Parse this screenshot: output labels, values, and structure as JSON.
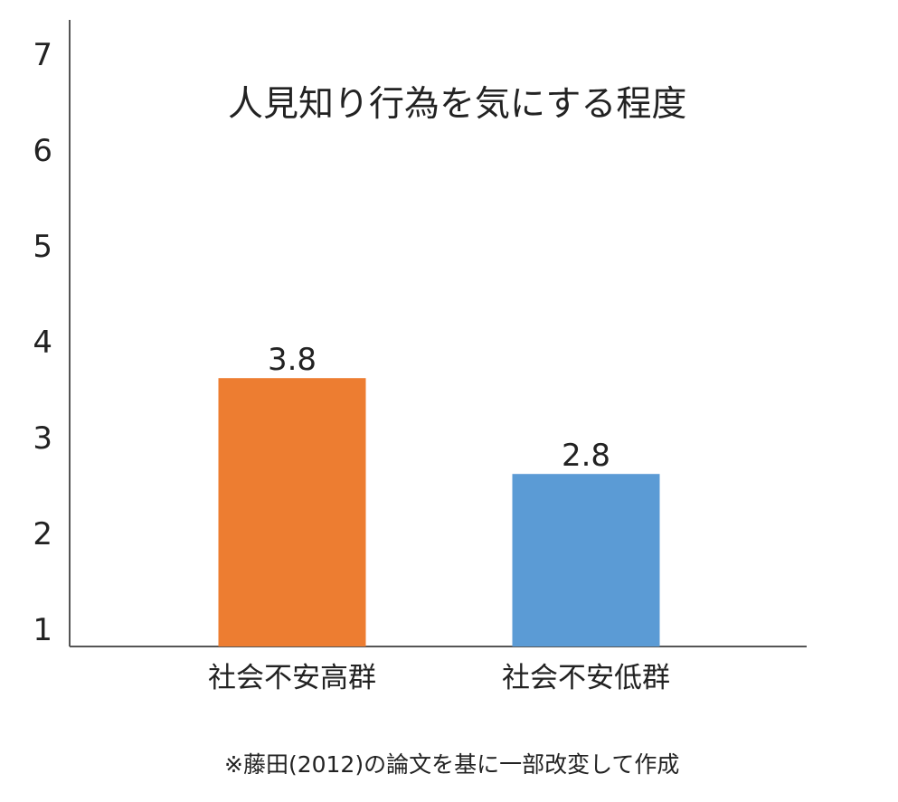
{
  "chart_data": {
    "type": "bar",
    "title": "人見知り行為を気にする程度",
    "categories": [
      "社会不安高群",
      "社会不安低群"
    ],
    "values": [
      3.8,
      2.8
    ],
    "data_labels": [
      "3.8",
      "2.8"
    ],
    "colors": [
      "#ED7D31",
      "#5B9BD5"
    ],
    "ylim": [
      1,
      7
    ],
    "yticks": [
      1,
      2,
      3,
      4,
      5,
      6,
      7
    ],
    "xlabel": "",
    "ylabel": "",
    "grid": false,
    "legend": "none"
  },
  "footnote": "※藤田(2012)の論文を基に一部改変して作成"
}
